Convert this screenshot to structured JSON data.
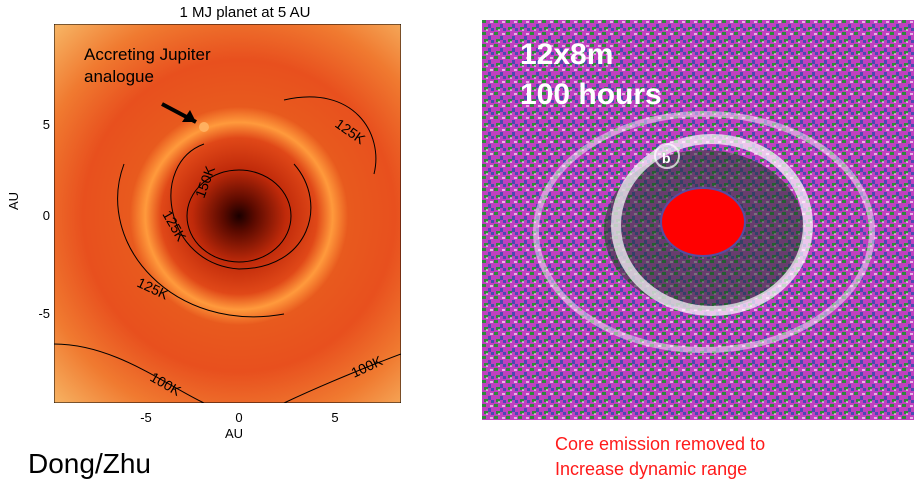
{
  "left_panel": {
    "title": "1 MJ planet at 5 AU",
    "annotation_line1": "Accreting Jupiter",
    "annotation_line2": "analogue",
    "contour_labels": [
      "125K",
      "150K",
      "125K",
      "125K",
      "100K",
      "100K"
    ],
    "y_ticks": [
      "5",
      "0",
      "-5"
    ],
    "x_ticks": [
      "-5",
      "0",
      "5"
    ],
    "y_label": "AU",
    "x_label": "AU",
    "colors": {
      "core": "#2a0000",
      "disk": "#e8501e",
      "ring": "#ff9a3c",
      "outer": "#f4a24c"
    }
  },
  "right_panel": {
    "line1": "12x8m",
    "line2": "100 hours",
    "planet_label": "b",
    "colors": {
      "noise_a": "#c040c0",
      "noise_b": "#2e8b3a",
      "noise_c": "#4b4bb0",
      "ring": "#ffffff",
      "mask": "#ff0000"
    }
  },
  "credit": "Dong/Zhu",
  "caption_line1": "Core emission removed to",
  "caption_line2": "Increase dynamic range"
}
